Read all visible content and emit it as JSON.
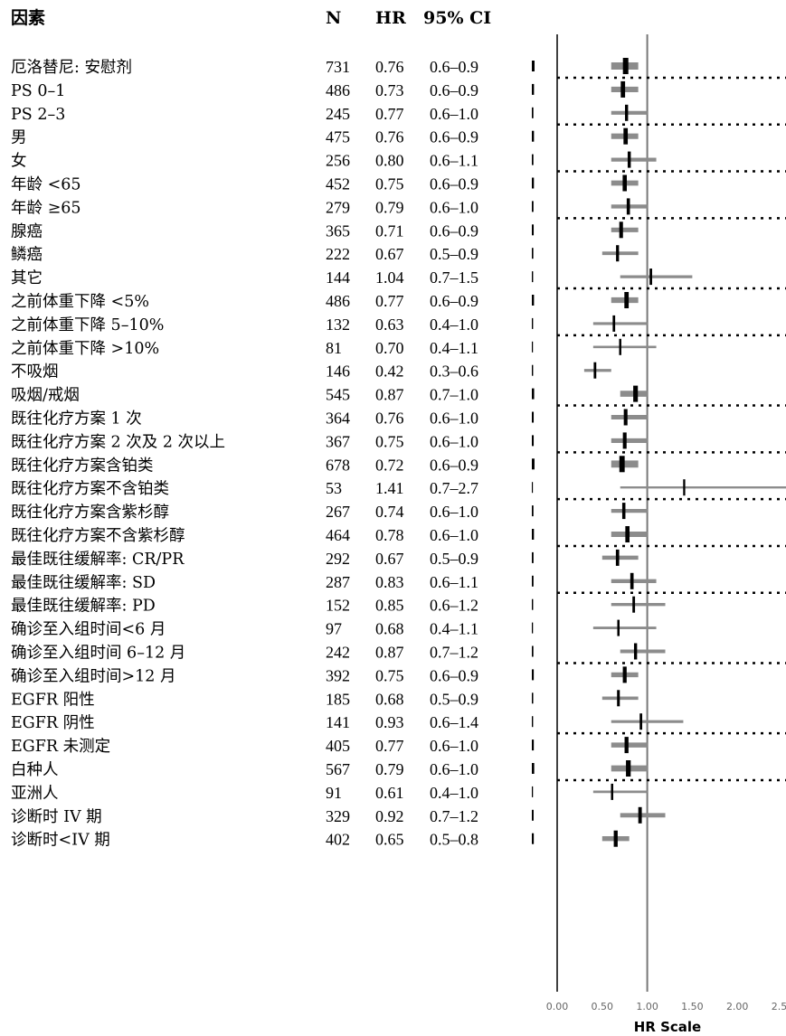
{
  "chart_data": {
    "type": "forest",
    "headers": {
      "factor": "因素",
      "n": "N",
      "hr": "HR",
      "ci": "95% CI"
    },
    "axis": {
      "label": "HR Scale",
      "range": [
        0,
        2.5
      ],
      "ticks": [
        "0.00",
        "0.50",
        "1.00",
        "1.50",
        "2.00",
        "2.50"
      ],
      "tick_values": [
        0,
        0.5,
        1.0,
        1.5,
        2.0,
        2.5
      ],
      "reference_line": 1.0
    },
    "groups": [
      1,
      2,
      2,
      2,
      3,
      2,
      3,
      2,
      2,
      2,
      2,
      3,
      3,
      2,
      3
    ],
    "rows": [
      {
        "label": "厄洛替尼: 安慰剂",
        "n": "731",
        "hr": 0.76,
        "hr_text": "0.76",
        "ci_text": "0.6–0.9",
        "ci": [
          0.6,
          0.9
        ]
      },
      {
        "label": "PS 0–1",
        "n": "486",
        "hr": 0.73,
        "hr_text": "0.73",
        "ci_text": "0.6–0.9",
        "ci": [
          0.6,
          0.9
        ]
      },
      {
        "label": "PS 2–3",
        "n": "245",
        "hr": 0.77,
        "hr_text": "0.77",
        "ci_text": "0.6–1.0",
        "ci": [
          0.6,
          1.0
        ]
      },
      {
        "label": "男",
        "n": "475",
        "hr": 0.76,
        "hr_text": "0.76",
        "ci_text": "0.6–0.9",
        "ci": [
          0.6,
          0.9
        ]
      },
      {
        "label": "女",
        "n": "256",
        "hr": 0.8,
        "hr_text": "0.80",
        "ci_text": "0.6–1.1",
        "ci": [
          0.6,
          1.1
        ]
      },
      {
        "label": "年龄 <65",
        "n": "452",
        "hr": 0.75,
        "hr_text": "0.75",
        "ci_text": "0.6–0.9",
        "ci": [
          0.6,
          0.9
        ]
      },
      {
        "label": "年龄 ≥65",
        "n": "279",
        "hr": 0.79,
        "hr_text": "0.79",
        "ci_text": "0.6–1.0",
        "ci": [
          0.6,
          1.0
        ]
      },
      {
        "label": "腺癌",
        "n": "365",
        "hr": 0.71,
        "hr_text": "0.71",
        "ci_text": "0.6–0.9",
        "ci": [
          0.6,
          0.9
        ]
      },
      {
        "label": "鳞癌",
        "n": "222",
        "hr": 0.67,
        "hr_text": "0.67",
        "ci_text": "0.5–0.9",
        "ci": [
          0.5,
          0.9
        ]
      },
      {
        "label": "其它",
        "n": "144",
        "hr": 1.04,
        "hr_text": "1.04",
        "ci_text": "0.7–1.5",
        "ci": [
          0.7,
          1.5
        ]
      },
      {
        "label": "之前体重下降 <5%",
        "n": "486",
        "hr": 0.77,
        "hr_text": "0.77",
        "ci_text": "0.6–0.9",
        "ci": [
          0.6,
          0.9
        ]
      },
      {
        "label": "之前体重下降 5–10%",
        "n": "132",
        "hr": 0.63,
        "hr_text": "0.63",
        "ci_text": "0.4–1.0",
        "ci": [
          0.4,
          1.0
        ]
      },
      {
        "label": "之前体重下降 >10%",
        "n": "81",
        "hr": 0.7,
        "hr_text": "0.70",
        "ci_text": "0.4–1.1",
        "ci": [
          0.4,
          1.1
        ]
      },
      {
        "label": "不吸烟",
        "n": "146",
        "hr": 0.42,
        "hr_text": "0.42",
        "ci_text": "0.3–0.6",
        "ci": [
          0.3,
          0.6
        ]
      },
      {
        "label": "吸烟/戒烟",
        "n": "545",
        "hr": 0.87,
        "hr_text": "0.87",
        "ci_text": "0.7–1.0",
        "ci": [
          0.7,
          1.0
        ]
      },
      {
        "label": "既往化疗方案 1 次",
        "n": "364",
        "hr": 0.76,
        "hr_text": "0.76",
        "ci_text": "0.6–1.0",
        "ci": [
          0.6,
          1.0
        ]
      },
      {
        "label": "既往化疗方案 2 次及 2 次以上",
        "n": "367",
        "hr": 0.75,
        "hr_text": "0.75",
        "ci_text": "0.6–1.0",
        "ci": [
          0.6,
          1.0
        ]
      },
      {
        "label": "既往化疗方案含铂类",
        "n": "678",
        "hr": 0.72,
        "hr_text": "0.72",
        "ci_text": "0.6–0.9",
        "ci": [
          0.6,
          0.9
        ]
      },
      {
        "label": "既往化疗方案不含铂类",
        "n": "53",
        "hr": 1.41,
        "hr_text": "1.41",
        "ci_text": "0.7–2.7",
        "ci": [
          0.7,
          2.7
        ]
      },
      {
        "label": "既往化疗方案含紫杉醇",
        "n": "267",
        "hr": 0.74,
        "hr_text": "0.74",
        "ci_text": "0.6–1.0",
        "ci": [
          0.6,
          1.0
        ]
      },
      {
        "label": "既往化疗方案不含紫杉醇",
        "n": "464",
        "hr": 0.78,
        "hr_text": "0.78",
        "ci_text": "0.6–1.0",
        "ci": [
          0.6,
          1.0
        ]
      },
      {
        "label": "最佳既往缓解率: CR/PR",
        "n": "292",
        "hr": 0.67,
        "hr_text": "0.67",
        "ci_text": "0.5–0.9",
        "ci": [
          0.5,
          0.9
        ]
      },
      {
        "label": "最佳既往缓解率: SD",
        "n": "287",
        "hr": 0.83,
        "hr_text": "0.83",
        "ci_text": "0.6–1.1",
        "ci": [
          0.6,
          1.1
        ]
      },
      {
        "label": "最佳既往缓解率: PD",
        "n": "152",
        "hr": 0.85,
        "hr_text": "0.85",
        "ci_text": "0.6–1.2",
        "ci": [
          0.6,
          1.2
        ]
      },
      {
        "label": "确诊至入组时间<6 月",
        "n": "97",
        "hr": 0.68,
        "hr_text": "0.68",
        "ci_text": "0.4–1.1",
        "ci": [
          0.4,
          1.1
        ]
      },
      {
        "label": "确诊至入组时间 6–12 月",
        "n": "242",
        "hr": 0.87,
        "hr_text": "0.87",
        "ci_text": "0.7–1.2",
        "ci": [
          0.7,
          1.2
        ]
      },
      {
        "label": "确诊至入组时间>12 月",
        "n": "392",
        "hr": 0.75,
        "hr_text": "0.75",
        "ci_text": "0.6–0.9",
        "ci": [
          0.6,
          0.9
        ]
      },
      {
        "label": "EGFR 阳性",
        "n": "185",
        "hr": 0.68,
        "hr_text": "0.68",
        "ci_text": "0.5–0.9",
        "ci": [
          0.5,
          0.9
        ]
      },
      {
        "label": "EGFR 阴性",
        "n": "141",
        "hr": 0.93,
        "hr_text": "0.93",
        "ci_text": "0.6–1.4",
        "ci": [
          0.6,
          1.4
        ]
      },
      {
        "label": "EGFR 未测定",
        "n": "405",
        "hr": 0.77,
        "hr_text": "0.77",
        "ci_text": "0.6–1.0",
        "ci": [
          0.6,
          1.0
        ]
      },
      {
        "label": "白种人",
        "n": "567",
        "hr": 0.79,
        "hr_text": "0.79",
        "ci_text": "0.6–1.0",
        "ci": [
          0.6,
          1.0
        ]
      },
      {
        "label": "亚洲人",
        "n": "91",
        "hr": 0.61,
        "hr_text": "0.61",
        "ci_text": "0.4–1.0",
        "ci": [
          0.4,
          1.0
        ]
      },
      {
        "label": "诊断时 IV 期",
        "n": "329",
        "hr": 0.92,
        "hr_text": "0.92",
        "ci_text": "0.7–1.2",
        "ci": [
          0.7,
          1.2
        ]
      },
      {
        "label": "诊断时<IV 期",
        "n": "402",
        "hr": 0.65,
        "hr_text": "0.65",
        "ci_text": "0.5–0.8",
        "ci": [
          0.5,
          0.8
        ]
      }
    ]
  }
}
